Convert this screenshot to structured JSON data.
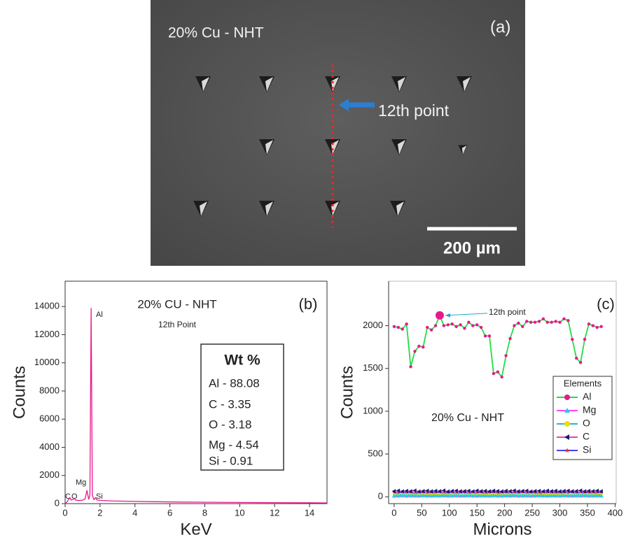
{
  "image_panel": {
    "label": "(a)",
    "caption": "20% Cu - NHT",
    "pointer": "12th point",
    "scale_bar": "200 µm"
  },
  "chart_data": [
    {
      "type": "line",
      "label": "(b)",
      "title": "20% CU - NHT",
      "subtitle": "12th Point",
      "x_label": "KeV",
      "y_label": "Counts",
      "x": [
        0,
        0.1,
        0.2,
        0.28,
        0.35,
        0.45,
        0.52,
        0.6,
        0.8,
        1.0,
        1.15,
        1.25,
        1.35,
        1.42,
        1.49,
        1.56,
        1.65,
        1.74,
        1.82,
        2.0,
        2.5,
        3,
        4,
        5,
        6,
        8,
        10,
        12,
        14,
        15
      ],
      "values": [
        0,
        100,
        300,
        420,
        250,
        300,
        380,
        250,
        220,
        240,
        350,
        950,
        300,
        600,
        13900,
        600,
        280,
        420,
        260,
        230,
        200,
        180,
        160,
        140,
        120,
        100,
        80,
        70,
        60,
        50
      ],
      "color": "#e8198c",
      "xlim": [
        0,
        15
      ],
      "xticks": [
        0,
        2,
        4,
        6,
        8,
        10,
        12,
        14
      ],
      "ylim": [
        0,
        15800
      ],
      "yticks": [
        0,
        2000,
        4000,
        6000,
        8000,
        10000,
        12000,
        14000
      ],
      "peak_labels": [
        "Al",
        "Mg",
        "C",
        "O",
        "Si"
      ],
      "wt_table": {
        "title": "Wt %",
        "rows": [
          "Al - 88.08",
          "C - 3.35",
          "O - 3.18",
          "Mg - 4.54",
          "Si - 0.91"
        ]
      }
    },
    {
      "type": "line",
      "label": "(c)",
      "annotation": "20% Cu - NHT",
      "pointer": "12th point",
      "highlight_index": 11,
      "x_label": "Microns",
      "y_label": "Counts",
      "x": [
        0,
        7.5,
        15,
        22.5,
        30,
        37.5,
        45,
        52.5,
        60,
        67.5,
        75,
        82.5,
        90,
        97.5,
        105,
        112.5,
        120,
        127.5,
        135,
        142.5,
        150,
        157.5,
        165,
        172.5,
        180,
        187.5,
        195,
        202.5,
        210,
        217.5,
        225,
        232.5,
        240,
        247.5,
        255,
        262.5,
        270,
        277.5,
        285,
        292.5,
        300,
        307.5,
        315,
        322.5,
        330,
        337.5,
        345,
        352.5,
        360,
        367.5,
        375
      ],
      "xlim": [
        -10,
        402
      ],
      "xticks": [
        0,
        50,
        100,
        150,
        200,
        250,
        300,
        350,
        400
      ],
      "ylim": [
        -80,
        2520
      ],
      "yticks": [
        0,
        500,
        1000,
        1500,
        2000
      ],
      "legend_title": "Elements",
      "legend": "right",
      "series": [
        {
          "name": "Al",
          "color": "#22dd44",
          "marker_color": "#e8198c",
          "marker": "circle",
          "values": [
            1990,
            1980,
            1960,
            2020,
            1520,
            1700,
            1760,
            1750,
            1980,
            1950,
            2000,
            2120,
            2000,
            2010,
            2020,
            1990,
            2010,
            1970,
            2040,
            2000,
            2010,
            1980,
            1880,
            1880,
            1440,
            1460,
            1400,
            1650,
            1850,
            2000,
            2030,
            1990,
            2050,
            2040,
            2040,
            2050,
            2080,
            2040,
            2040,
            2050,
            2040,
            2080,
            2060,
            1840,
            1620,
            1570,
            1840,
            2020,
            2000,
            1980,
            1990
          ]
        },
        {
          "name": "Mg",
          "color": "#ff44ff",
          "marker_color": "#22ccee",
          "marker": "triangle",
          "values": [
            8,
            10,
            12,
            9,
            11,
            10,
            8,
            12,
            10,
            9,
            11,
            10,
            12,
            9,
            10,
            11,
            8,
            10,
            12,
            10,
            9,
            11,
            10,
            8,
            12,
            10,
            9,
            11,
            10,
            12,
            9,
            10,
            11,
            8,
            10,
            12,
            10,
            9,
            11,
            10,
            8,
            12,
            10,
            9,
            11,
            10,
            12,
            9,
            10,
            11,
            10
          ]
        },
        {
          "name": "O",
          "color": "#22bbcc",
          "marker_color": "#eedd00",
          "marker": "circle",
          "values": [
            25,
            22,
            28,
            24,
            26,
            23,
            27,
            25,
            22,
            26,
            24,
            28,
            25,
            23,
            27,
            24,
            26,
            22,
            25,
            28,
            23,
            26,
            24,
            27,
            25,
            22,
            26,
            24,
            28,
            25,
            23,
            27,
            24,
            26,
            22,
            25,
            28,
            24,
            26,
            23,
            27,
            25,
            22,
            26,
            24,
            28,
            25,
            23,
            27,
            24,
            26
          ]
        },
        {
          "name": "C",
          "color": "#ee44aa",
          "marker_color": "#1a1a7a",
          "marker": "left",
          "values": [
            65,
            70,
            62,
            68,
            64,
            72,
            60,
            66,
            70,
            63,
            68,
            65,
            72,
            61,
            67,
            70,
            64,
            66,
            69,
            62,
            71,
            65,
            68,
            63,
            70,
            66,
            62,
            69,
            65,
            72,
            64,
            67,
            70,
            61,
            66,
            68,
            63,
            71,
            65,
            69,
            62,
            67,
            70,
            64,
            66,
            72,
            63,
            68,
            65,
            70,
            64
          ]
        },
        {
          "name": "Si",
          "color": "#4444ee",
          "marker_color": "#ee2222",
          "marker": "star",
          "values": [
            48,
            44,
            52,
            46,
            50,
            43,
            47,
            51,
            45,
            49,
            46,
            53,
            44,
            48,
            50,
            45,
            47,
            52,
            43,
            49,
            46,
            50,
            44,
            48,
            53,
            45,
            47,
            51,
            44,
            49,
            46,
            52,
            45,
            48,
            50,
            43,
            47,
            51,
            46,
            49,
            44,
            50,
            47,
            52,
            45,
            48,
            46,
            51,
            44,
            49,
            47
          ]
        }
      ]
    }
  ]
}
